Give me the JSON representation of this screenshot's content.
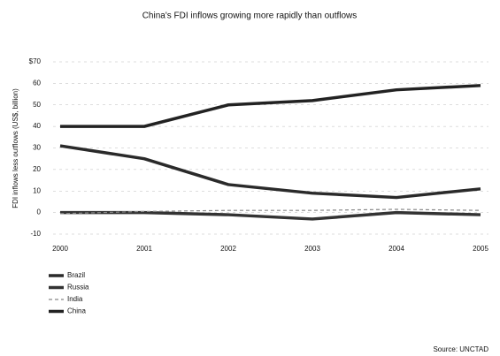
{
  "chart_data": {
    "type": "line",
    "title": "China's FDI inflows growing more rapidly than outflows",
    "y_label": "FDI inflows less outflows (US$, billion)",
    "source": "Source: UNCTAD",
    "categories": [
      "2000",
      "2001",
      "2002",
      "2003",
      "2004",
      "2005"
    ],
    "series": [
      {
        "name": "Brazil",
        "color": "#2a2a2a",
        "values": [
          31,
          25,
          13,
          9,
          7,
          11
        ]
      },
      {
        "name": "Russia",
        "color": "#333333",
        "values": [
          0,
          0,
          -1,
          -3,
          0,
          -1
        ]
      },
      {
        "name": "India",
        "color": "#888888",
        "values": [
          -0.5,
          0.5,
          1,
          1,
          1.5,
          1
        ]
      },
      {
        "name": "China",
        "color": "#222222",
        "values": [
          40,
          40,
          50,
          52,
          57,
          59
        ]
      }
    ],
    "ylim": [
      -10,
      70
    ],
    "yticks": [
      -10,
      0,
      10,
      20,
      30,
      40,
      50,
      60,
      {
        "value": 70,
        "label": "$70"
      }
    ],
    "grid": true
  }
}
